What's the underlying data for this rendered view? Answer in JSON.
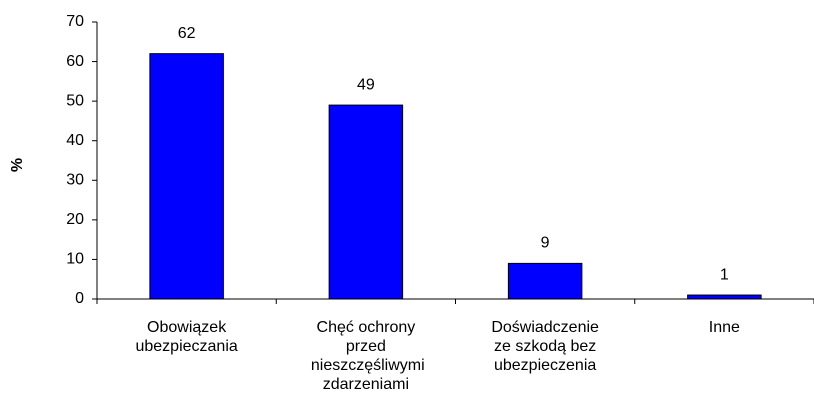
{
  "chart_data": {
    "type": "bar",
    "y_label": "%",
    "categories": [
      "Obowiązek ubezpieczania",
      "Chęć ochrony przed nieszczęśliwymi zdarzeniami",
      "Doświadczenie ze szkodą bez ubezpieczenia",
      "Inne"
    ],
    "values": [
      62,
      49,
      9,
      1
    ],
    "color": "#0000ff",
    "ylim": [
      0,
      70
    ],
    "yticks": [
      0,
      10,
      20,
      30,
      40,
      50,
      60,
      70
    ],
    "grid": false
  }
}
